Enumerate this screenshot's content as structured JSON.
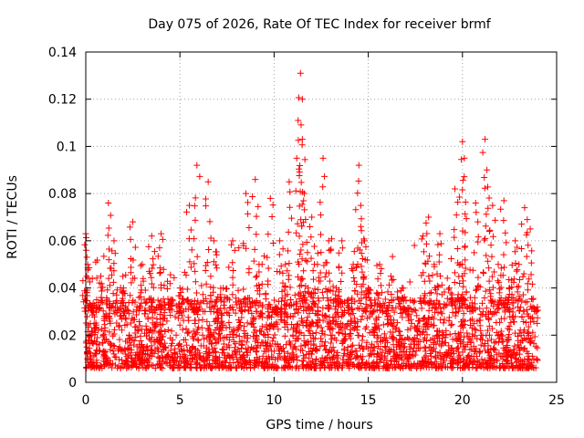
{
  "chart_data": {
    "type": "scatter",
    "title": "Day 075 of 2026, Rate Of TEC Index for receiver brmf",
    "xlabel": "GPS time / hours",
    "ylabel": "ROTI / TECUs",
    "xlim": [
      0,
      25
    ],
    "ylim": [
      0,
      0.14
    ],
    "xticks": [
      "0",
      "5",
      "10",
      "15",
      "20",
      "25"
    ],
    "yticks": [
      "0",
      "0.02",
      "0.04",
      "0.06",
      "0.08",
      "0.1",
      "0.12",
      "0.14"
    ],
    "grid": true,
    "marker": "+",
    "series_color": "#ff0000",
    "series": [
      {
        "name": "ROTI",
        "x": [
          0.0,
          0.05,
          0.1,
          0.2,
          0.3,
          0.5,
          0.8,
          1.0,
          1.2,
          1.3,
          1.5,
          1.8,
          2.0,
          2.3,
          2.5,
          2.8,
          3.0,
          3.3,
          3.5,
          3.8,
          4.0,
          4.2,
          4.5,
          4.8,
          5.0,
          5.2,
          5.5,
          5.8,
          5.9,
          6.2,
          6.5,
          6.8,
          7.0,
          7.3,
          7.5,
          7.8,
          8.0,
          8.3,
          8.5,
          8.8,
          9.0,
          9.2,
          9.5,
          9.8,
          10.0,
          10.3,
          10.6,
          10.8,
          11.0,
          11.2,
          11.4,
          11.5,
          11.5,
          11.6,
          11.8,
          12.0,
          12.3,
          12.6,
          12.9,
          13.0,
          13.3,
          13.6,
          13.9,
          14.2,
          14.5,
          14.6,
          14.8,
          15.0,
          15.3,
          15.6,
          15.9,
          16.2,
          16.5,
          16.8,
          17.0,
          17.3,
          17.6,
          17.9,
          18.2,
          18.5,
          18.8,
          19.0,
          19.3,
          19.6,
          19.9,
          20.0,
          20.1,
          20.4,
          20.7,
          21.0,
          21.2,
          21.3,
          21.6,
          21.9,
          22.2,
          22.5,
          22.8,
          23.0,
          23.3,
          23.6,
          23.9
        ],
        "y": [
          0.063,
          0.015,
          0.05,
          0.02,
          0.032,
          0.012,
          0.045,
          0.018,
          0.076,
          0.025,
          0.06,
          0.015,
          0.04,
          0.02,
          0.068,
          0.012,
          0.05,
          0.022,
          0.062,
          0.018,
          0.063,
          0.015,
          0.035,
          0.02,
          0.04,
          0.018,
          0.075,
          0.03,
          0.092,
          0.02,
          0.085,
          0.06,
          0.025,
          0.04,
          0.015,
          0.06,
          0.02,
          0.03,
          0.08,
          0.015,
          0.086,
          0.05,
          0.02,
          0.078,
          0.03,
          0.06,
          0.05,
          0.085,
          0.02,
          0.095,
          0.131,
          0.12,
          0.103,
          0.08,
          0.04,
          0.07,
          0.05,
          0.095,
          0.06,
          0.02,
          0.04,
          0.06,
          0.012,
          0.05,
          0.092,
          0.075,
          0.06,
          0.04,
          0.02,
          0.05,
          0.03,
          0.045,
          0.015,
          0.04,
          0.03,
          0.025,
          0.02,
          0.062,
          0.07,
          0.05,
          0.063,
          0.02,
          0.04,
          0.082,
          0.05,
          0.102,
          0.095,
          0.03,
          0.076,
          0.02,
          0.103,
          0.09,
          0.075,
          0.05,
          0.077,
          0.04,
          0.06,
          0.05,
          0.074,
          0.065,
          0.03
        ]
      }
    ]
  }
}
